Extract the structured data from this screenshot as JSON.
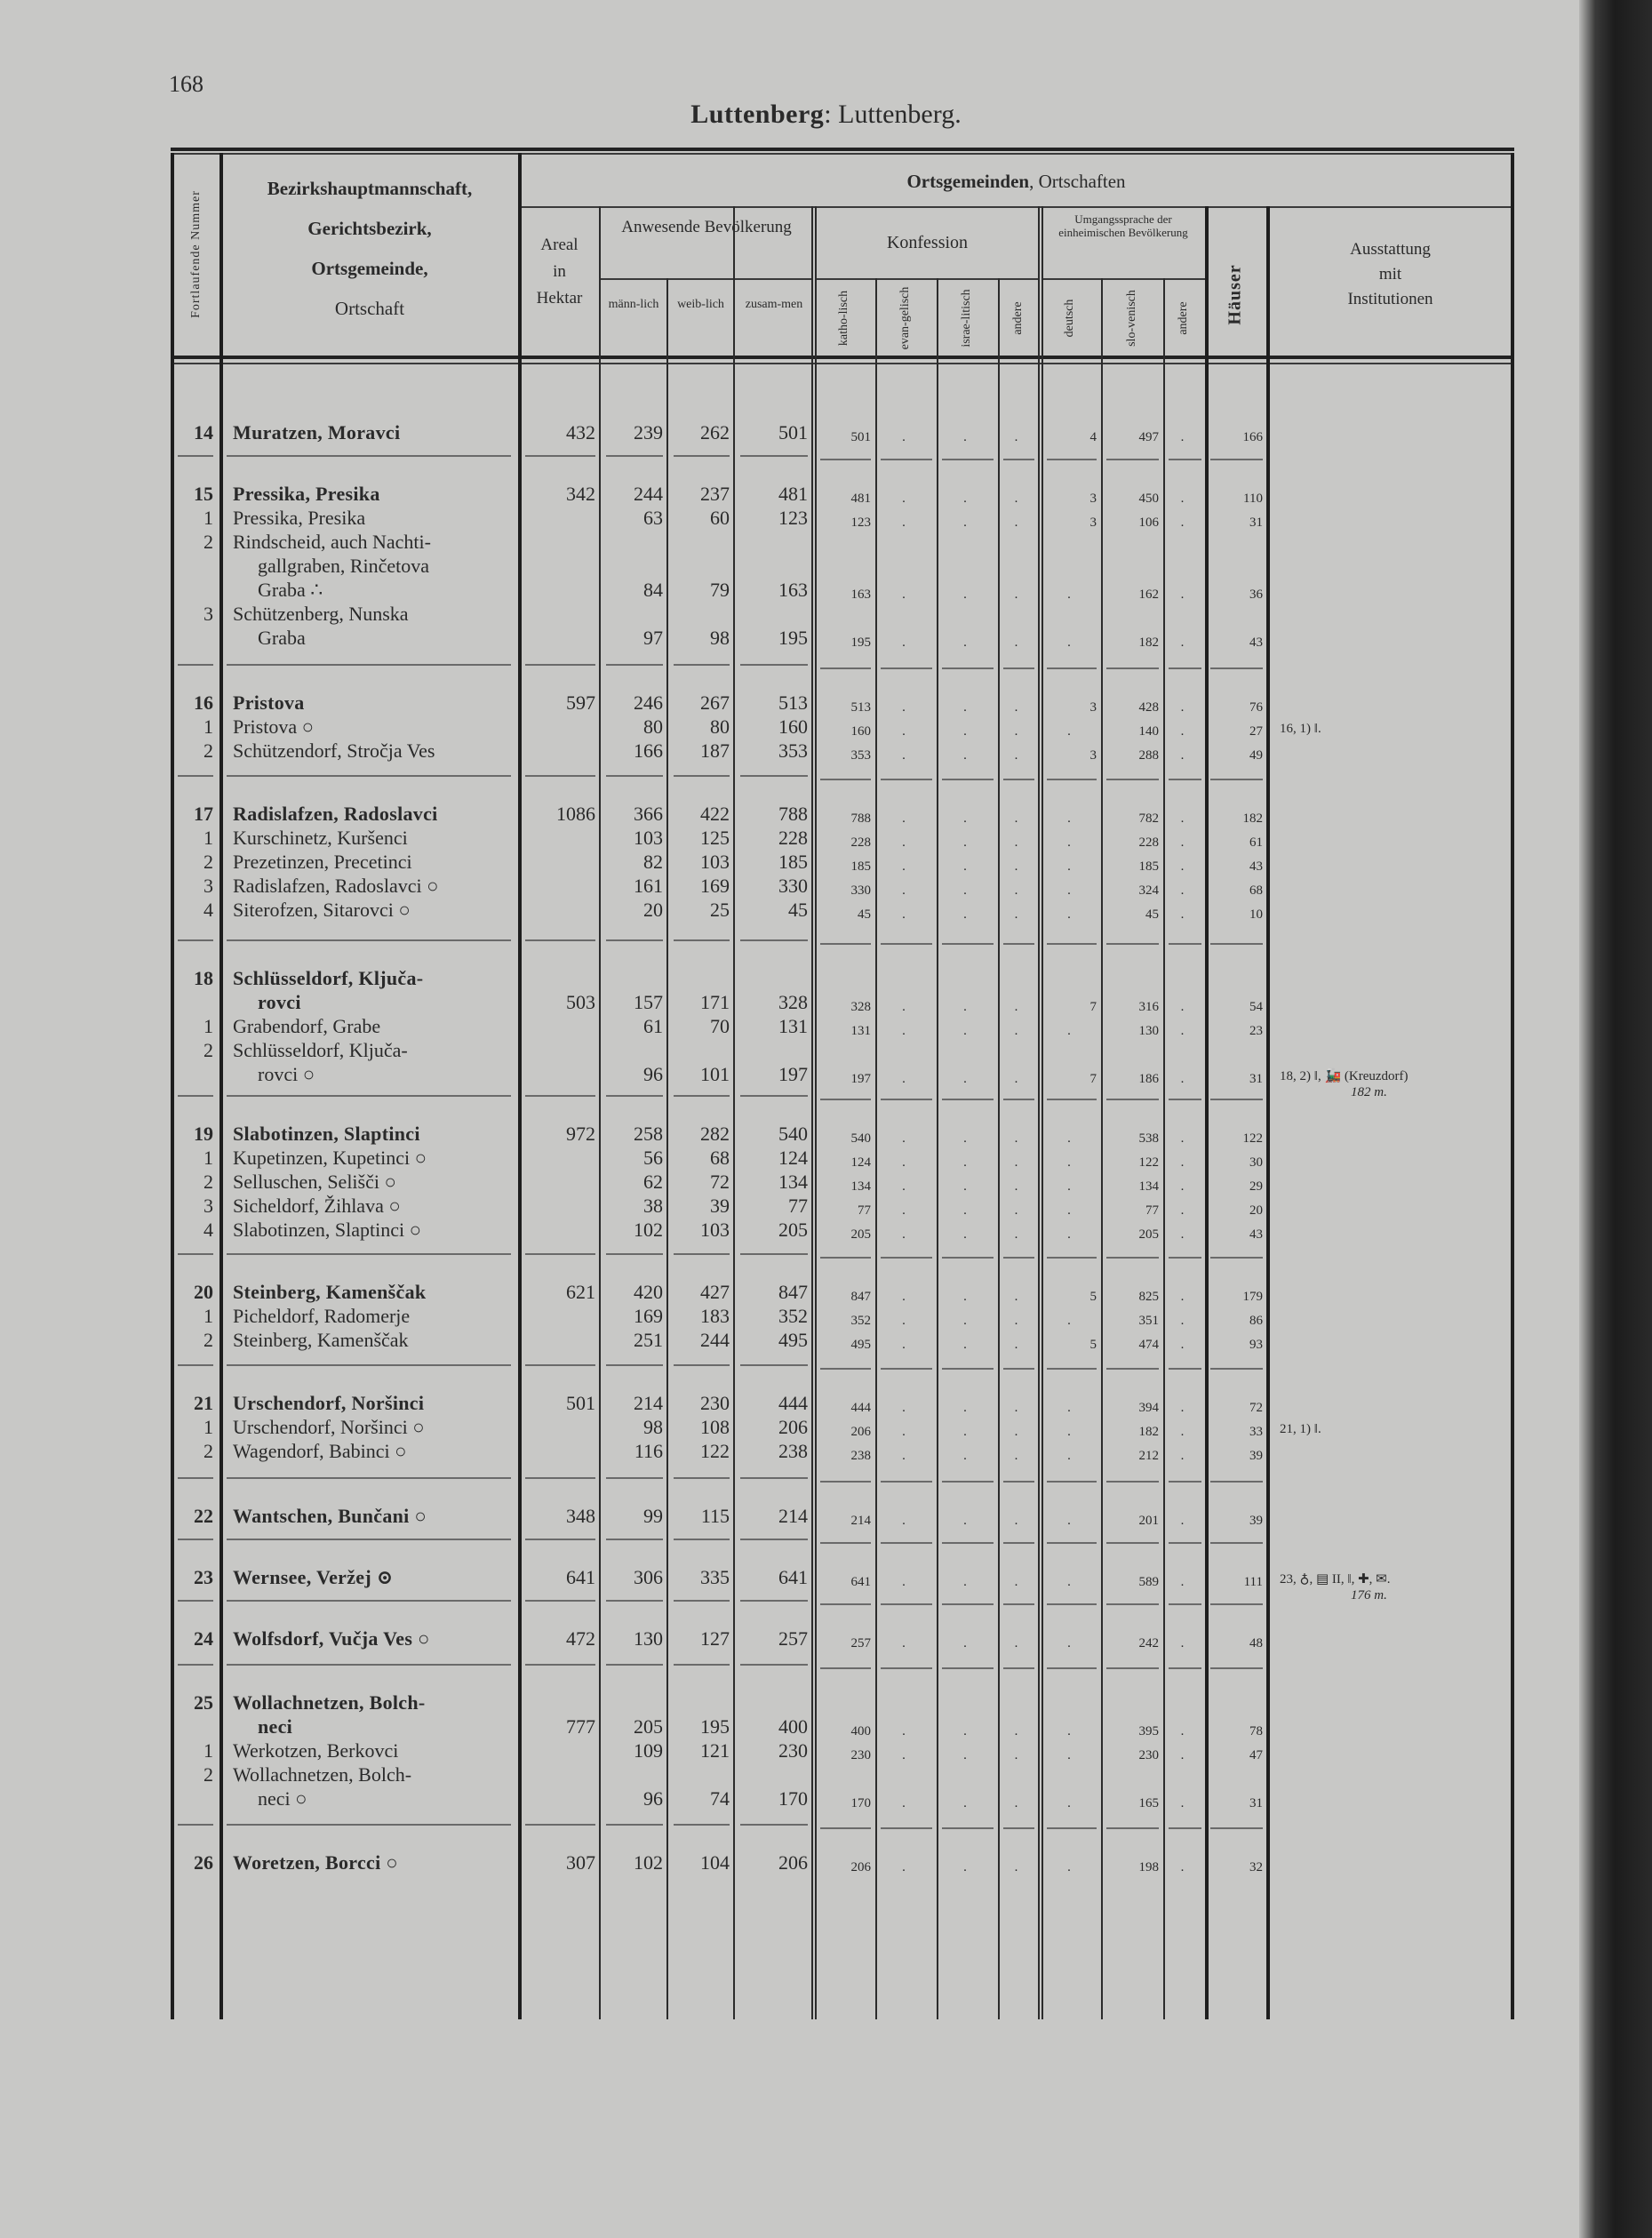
{
  "page_number": "168",
  "title": {
    "bold": "Luttenberg",
    "rest": ": Luttenberg."
  },
  "header": {
    "nr": "Fortlaufende Nummer",
    "name": [
      "Bezirkshauptmannschaft,",
      "Gerichtsbezirk,",
      "Ortsgemeinde,",
      "Ortschaft"
    ],
    "group_title_bold": "Ortsgemeinden",
    "group_title_rest": ", Ortschaften",
    "areal": [
      "Areal",
      "in",
      "Hektar"
    ],
    "bevoelkerung": "Anwesende Bevölkerung",
    "bev_cols": [
      "männ-lich",
      "weib-lich",
      "zusam-men"
    ],
    "konfession": "Konfession",
    "konf_cols": [
      "katho-lisch",
      "evan-gelisch",
      "israe-litisch",
      "andere"
    ],
    "umgangssprache": "Umgangssprache der einheimischen Bevölkerung",
    "sprache_cols": [
      "deutsch",
      "slo-venisch",
      "andere"
    ],
    "haeuser": "Häuser",
    "ausstattung": [
      "Ausstattung",
      "mit",
      "Institutionen"
    ]
  },
  "groups": [
    {
      "lines": [
        {
          "nr": "14",
          "text": "Muratzen, Moravci",
          "bold": true,
          "values": [
            "432",
            "239",
            "262",
            "501",
            "501",
            ".",
            ".",
            ".",
            "4",
            "497",
            ".",
            "166"
          ]
        }
      ]
    },
    {
      "lines": [
        {
          "nr": "15",
          "text": "Pressika, Presika",
          "bold": true,
          "values": [
            "342",
            "244",
            "237",
            "481",
            "481",
            ".",
            ".",
            ".",
            "3",
            "450",
            ".",
            "110"
          ]
        },
        {
          "nr": "1",
          "text": "Pressika, Presika",
          "values": [
            "",
            "63",
            "60",
            "123",
            "123",
            ".",
            ".",
            ".",
            "3",
            "106",
            ".",
            "31"
          ]
        },
        {
          "nr": "2",
          "text": "Rindscheid, auch Nachti-"
        },
        {
          "text": "gallgraben, Rinčetova",
          "cont": true
        },
        {
          "text": "Graba ∴",
          "cont": true,
          "values": [
            "",
            "84",
            "79",
            "163",
            "163",
            ".",
            ".",
            ".",
            ".",
            "162",
            ".",
            "36"
          ]
        },
        {
          "nr": "3",
          "text": "Schützenberg, Nunska"
        },
        {
          "text": "Graba",
          "cont": true,
          "values": [
            "",
            "97",
            "98",
            "195",
            "195",
            ".",
            ".",
            ".",
            ".",
            "182",
            ".",
            "43"
          ]
        }
      ]
    },
    {
      "lines": [
        {
          "nr": "16",
          "text": "Pristova",
          "bold": true,
          "values": [
            "597",
            "246",
            "267",
            "513",
            "513",
            ".",
            ".",
            ".",
            "3",
            "428",
            ".",
            "76"
          ]
        },
        {
          "nr": "1",
          "text": "Pristova ○",
          "values": [
            "",
            "80",
            "80",
            "160",
            "160",
            ".",
            ".",
            ".",
            ".",
            "140",
            ".",
            "27"
          ],
          "ausstattung": [
            "16, 1) ‖.",
            ""
          ]
        },
        {
          "nr": "2",
          "text": "Schützendorf, Stročja Ves",
          "values": [
            "",
            "166",
            "187",
            "353",
            "353",
            ".",
            ".",
            ".",
            "3",
            "288",
            ".",
            "49"
          ]
        }
      ]
    },
    {
      "lines": [
        {
          "nr": "17",
          "text": "Radislafzen, Radoslavci",
          "bold": true,
          "values": [
            "1086",
            "366",
            "422",
            "788",
            "788",
            ".",
            ".",
            ".",
            ".",
            "782",
            ".",
            "182"
          ]
        },
        {
          "nr": "1",
          "text": "Kurschinetz, Kuršenci",
          "values": [
            "",
            "103",
            "125",
            "228",
            "228",
            ".",
            ".",
            ".",
            ".",
            "228",
            ".",
            "61"
          ]
        },
        {
          "nr": "2",
          "text": "Prezetinzen, Precetinci",
          "values": [
            "",
            "82",
            "103",
            "185",
            "185",
            ".",
            ".",
            ".",
            ".",
            "185",
            ".",
            "43"
          ]
        },
        {
          "nr": "3",
          "text": "Radislafzen, Radoslavci ○",
          "values": [
            "",
            "161",
            "169",
            "330",
            "330",
            ".",
            ".",
            ".",
            ".",
            "324",
            ".",
            "68"
          ]
        },
        {
          "nr": "4",
          "text": "Siterofzen, Sitarovci ○",
          "values": [
            "",
            "20",
            "25",
            "45",
            "45",
            ".",
            ".",
            ".",
            ".",
            "45",
            ".",
            "10"
          ]
        }
      ]
    },
    {
      "lines": [
        {
          "nr": "18",
          "text": "Schlüsseldorf, Ključa-",
          "bold": true
        },
        {
          "text": "rovci",
          "bold": true,
          "cont": true,
          "values": [
            "503",
            "157",
            "171",
            "328",
            "328",
            ".",
            ".",
            ".",
            "7",
            "316",
            ".",
            "54"
          ]
        },
        {
          "nr": "1",
          "text": "Grabendorf, Grabe",
          "values": [
            "",
            "61",
            "70",
            "131",
            "131",
            ".",
            ".",
            ".",
            ".",
            "130",
            ".",
            "23"
          ]
        },
        {
          "nr": "2",
          "text": "Schlüsseldorf, Ključa-"
        },
        {
          "text": "rovci ○",
          "cont": true,
          "values": [
            "",
            "96",
            "101",
            "197",
            "197",
            ".",
            ".",
            ".",
            "7",
            "186",
            ".",
            "31"
          ],
          "ausstattung": [
            "18, 2) ‖, 🚂 (Kreuzdorf)",
            "182 m."
          ]
        }
      ]
    },
    {
      "lines": [
        {
          "nr": "19",
          "text": "Slabotinzen, Slaptinci",
          "bold": true,
          "values": [
            "972",
            "258",
            "282",
            "540",
            "540",
            ".",
            ".",
            ".",
            ".",
            "538",
            ".",
            "122"
          ]
        },
        {
          "nr": "1",
          "text": "Kupetinzen, Kupetinci ○",
          "values": [
            "",
            "56",
            "68",
            "124",
            "124",
            ".",
            ".",
            ".",
            ".",
            "122",
            ".",
            "30"
          ]
        },
        {
          "nr": "2",
          "text": "Selluschen, Selišči ○",
          "values": [
            "",
            "62",
            "72",
            "134",
            "134",
            ".",
            ".",
            ".",
            ".",
            "134",
            ".",
            "29"
          ]
        },
        {
          "nr": "3",
          "text": "Sicheldorf, Žihlava ○",
          "values": [
            "",
            "38",
            "39",
            "77",
            "77",
            ".",
            ".",
            ".",
            ".",
            "77",
            ".",
            "20"
          ]
        },
        {
          "nr": "4",
          "text": "Slabotinzen, Slaptinci ○",
          "values": [
            "",
            "102",
            "103",
            "205",
            "205",
            ".",
            ".",
            ".",
            ".",
            "205",
            ".",
            "43"
          ]
        }
      ]
    },
    {
      "lines": [
        {
          "nr": "20",
          "text": "Steinberg, Kamenščak",
          "bold": true,
          "values": [
            "621",
            "420",
            "427",
            "847",
            "847",
            ".",
            ".",
            ".",
            "5",
            "825",
            ".",
            "179"
          ]
        },
        {
          "nr": "1",
          "text": "Picheldorf, Radomerje",
          "values": [
            "",
            "169",
            "183",
            "352",
            "352",
            ".",
            ".",
            ".",
            ".",
            "351",
            ".",
            "86"
          ]
        },
        {
          "nr": "2",
          "text": "Steinberg, Kamenščak",
          "values": [
            "",
            "251",
            "244",
            "495",
            "495",
            ".",
            ".",
            ".",
            "5",
            "474",
            ".",
            "93"
          ]
        }
      ]
    },
    {
      "lines": [
        {
          "nr": "21",
          "text": "Urschendorf, Noršinci",
          "bold": true,
          "values": [
            "501",
            "214",
            "230",
            "444",
            "444",
            ".",
            ".",
            ".",
            ".",
            "394",
            ".",
            "72"
          ]
        },
        {
          "nr": "1",
          "text": "Urschendorf, Noršinci ○",
          "values": [
            "",
            "98",
            "108",
            "206",
            "206",
            ".",
            ".",
            ".",
            ".",
            "182",
            ".",
            "33"
          ],
          "ausstattung": [
            "21, 1) ‖.",
            ""
          ]
        },
        {
          "nr": "2",
          "text": "Wagendorf, Babinci ○",
          "values": [
            "",
            "116",
            "122",
            "238",
            "238",
            ".",
            ".",
            ".",
            ".",
            "212",
            ".",
            "39"
          ]
        }
      ]
    },
    {
      "lines": [
        {
          "nr": "22",
          "text": "Wantschen, Bunčani ○",
          "bold": true,
          "values": [
            "348",
            "99",
            "115",
            "214",
            "214",
            ".",
            ".",
            ".",
            ".",
            "201",
            ".",
            "39"
          ]
        }
      ]
    },
    {
      "lines": [
        {
          "nr": "23",
          "text": "Wernsee, Veržej ⊙",
          "bold": true,
          "values": [
            "641",
            "306",
            "335",
            "641",
            "641",
            ".",
            ".",
            ".",
            ".",
            "589",
            ".",
            "111"
          ],
          "ausstattung": [
            "23, ♁, ▤ II, ‖, ✚, ✉.",
            "176 m."
          ]
        }
      ]
    },
    {
      "lines": [
        {
          "nr": "24",
          "text": "Wolfsdorf, Vučja Ves ○",
          "bold": true,
          "values": [
            "472",
            "130",
            "127",
            "257",
            "257",
            ".",
            ".",
            ".",
            ".",
            "242",
            ".",
            "48"
          ]
        }
      ]
    },
    {
      "lines": [
        {
          "nr": "25",
          "text": "Wollachnetzen, Bolch-",
          "bold": true
        },
        {
          "text": "neci",
          "bold": true,
          "cont": true,
          "values": [
            "777",
            "205",
            "195",
            "400",
            "400",
            ".",
            ".",
            ".",
            ".",
            "395",
            ".",
            "78"
          ]
        },
        {
          "nr": "1",
          "text": "Werkotzen, Berkovci",
          "values": [
            "",
            "109",
            "121",
            "230",
            "230",
            ".",
            ".",
            ".",
            ".",
            "230",
            ".",
            "47"
          ]
        },
        {
          "nr": "2",
          "text": "Wollachnetzen, Bolch-"
        },
        {
          "text": "neci ○",
          "cont": true,
          "values": [
            "",
            "96",
            "74",
            "170",
            "170",
            ".",
            ".",
            ".",
            ".",
            "165",
            ".",
            "31"
          ]
        }
      ]
    },
    {
      "lines": [
        {
          "nr": "26",
          "text": "Woretzen, Borcci ○",
          "bold": true,
          "values": [
            "307",
            "102",
            "104",
            "206",
            "206",
            ".",
            ".",
            ".",
            ".",
            "198",
            ".",
            "32"
          ]
        }
      ]
    }
  ]
}
